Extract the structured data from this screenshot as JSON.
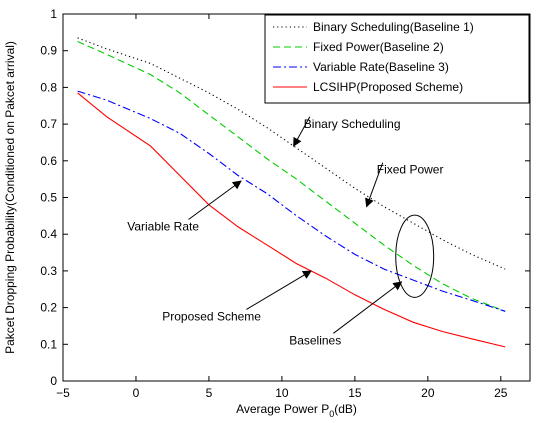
{
  "chart_data": {
    "type": "line",
    "title": "",
    "xlabel": "Average Power P",
    "xlabel_sub": "0",
    "xlabel_unit": "(dB)",
    "ylabel": "Pakcet Dropping Probability(Conditioned on Pakcet arrival)",
    "xlim": [
      -5,
      27
    ],
    "ylim": [
      0,
      1
    ],
    "xticks": [
      -5,
      0,
      5,
      10,
      15,
      20,
      25
    ],
    "yticks": [
      0,
      0.1,
      0.2,
      0.3,
      0.4,
      0.5,
      0.6,
      0.7,
      0.8,
      0.9,
      1
    ],
    "grid": false,
    "legend_position": "top-right",
    "series": [
      {
        "name": "Binary Scheduling(Baseline 1)",
        "color": "#000000",
        "style": "dotted",
        "x": [
          -4,
          -2,
          1,
          3,
          5,
          7,
          9,
          11,
          13,
          15,
          17,
          19,
          21,
          23,
          25.3
        ],
        "y": [
          0.935,
          0.905,
          0.865,
          0.825,
          0.785,
          0.74,
          0.69,
          0.635,
          0.58,
          0.525,
          0.475,
          0.43,
          0.385,
          0.345,
          0.305
        ]
      },
      {
        "name": "Fixed Power(Baseline 2)",
        "color": "#00cc00",
        "style": "dashed",
        "x": [
          -4,
          -2,
          1,
          3,
          5,
          7,
          9,
          11,
          13,
          15,
          17,
          19,
          21,
          23,
          25.3
        ],
        "y": [
          0.925,
          0.89,
          0.835,
          0.785,
          0.725,
          0.665,
          0.605,
          0.55,
          0.49,
          0.43,
          0.37,
          0.315,
          0.265,
          0.225,
          0.19
        ]
      },
      {
        "name": "Variable Rate(Baseline 3)",
        "color": "#0000ff",
        "style": "dashdot",
        "x": [
          -4,
          -2,
          1,
          3,
          5,
          7,
          9,
          11,
          13,
          15,
          17,
          19,
          21,
          23,
          25.3
        ],
        "y": [
          0.79,
          0.765,
          0.715,
          0.675,
          0.62,
          0.56,
          0.51,
          0.45,
          0.395,
          0.345,
          0.305,
          0.275,
          0.245,
          0.22,
          0.19
        ]
      },
      {
        "name": "LCSIHP(Proposed Scheme)",
        "color": "#ff0000",
        "style": "solid",
        "x": [
          -4,
          -2,
          1,
          3,
          5,
          7,
          9,
          11,
          13,
          15,
          17,
          19,
          21,
          23,
          25.3
        ],
        "y": [
          0.785,
          0.72,
          0.64,
          0.56,
          0.48,
          0.42,
          0.37,
          0.32,
          0.28,
          0.235,
          0.195,
          0.16,
          0.135,
          0.115,
          0.093
        ]
      }
    ],
    "annotations": [
      {
        "text": "Binary Scheduling",
        "tx": 11.5,
        "ty": 0.69,
        "ax": 10.8,
        "ay": 0.64
      },
      {
        "text": "Fixed Power",
        "tx": 16.5,
        "ty": 0.565,
        "ax": 15.8,
        "ay": 0.475
      },
      {
        "text": "Variable Rate",
        "tx": -0.6,
        "ty": 0.41,
        "ax": 7.2,
        "ay": 0.545
      },
      {
        "text": "Proposed Scheme",
        "tx": 1.8,
        "ty": 0.165,
        "ax": 12,
        "ay": 0.3
      },
      {
        "text": "Baselines",
        "tx": 10.5,
        "ty": 0.1,
        "ax": 18.2,
        "ay": 0.27
      }
    ],
    "ellipse": {
      "cx": 19.1,
      "cy": 0.34,
      "rx": 1.3,
      "ry": 0.112
    }
  }
}
